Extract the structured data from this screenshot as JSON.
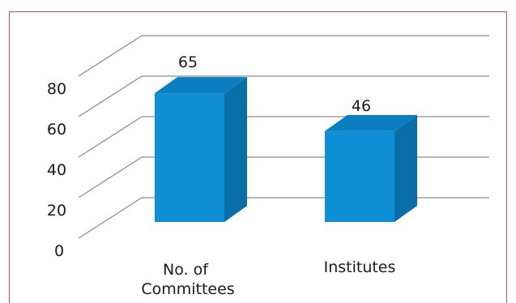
{
  "chart_data": {
    "type": "bar",
    "categories": [
      "No. of Committees",
      "Institutes"
    ],
    "category_lines": [
      [
        "No. of",
        "Committees"
      ],
      [
        "Institutes"
      ]
    ],
    "values": [
      65,
      46
    ],
    "value_labels": [
      "65",
      "46"
    ],
    "ylim": [
      0,
      80
    ],
    "yticks": [
      "0",
      "20",
      "40",
      "60",
      "80"
    ],
    "grid": true,
    "style": "3d-column",
    "colors": {
      "front": "#0f8fd6",
      "side": "#0a6fa8",
      "top": "#0b7ec0",
      "grid": "#8c8c8c",
      "border": "#c0449a"
    }
  }
}
